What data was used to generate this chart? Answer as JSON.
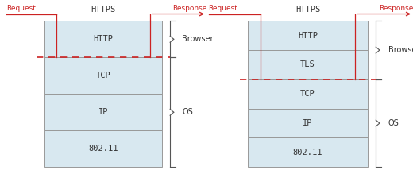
{
  "bg_color": "#ffffff",
  "box_fill": "#d8e8f0",
  "box_edge": "#999999",
  "red_color": "#cc2222",
  "text_color": "#333333",
  "brace_color": "#555555",
  "diagram1": {
    "title": "HTTPS",
    "layers": [
      "HTTP",
      "TCP",
      "IP",
      "802.11"
    ],
    "n_browser": 1,
    "n_os": 3
  },
  "diagram2": {
    "title": "HTTPS",
    "layers": [
      "HTTP",
      "TLS",
      "TCP",
      "IP",
      "802.11"
    ],
    "n_browser": 2,
    "n_os": 3
  }
}
